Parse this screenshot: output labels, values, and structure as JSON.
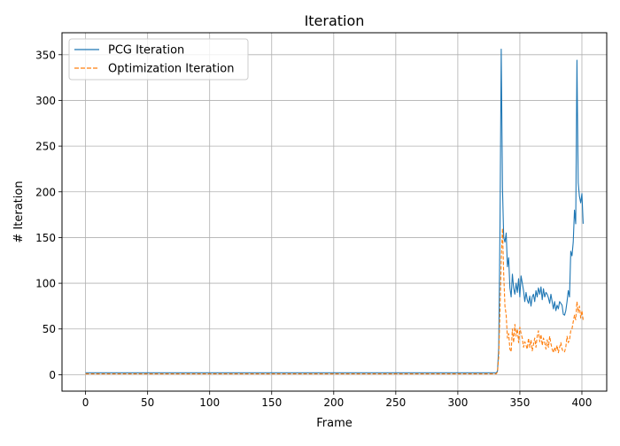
{
  "chart_data": {
    "type": "line",
    "title": "Iteration",
    "xlabel": "Frame",
    "ylabel": "# Iteration",
    "xlim": [
      -19,
      420
    ],
    "ylim": [
      -18,
      374
    ],
    "xticks": [
      0,
      50,
      100,
      150,
      200,
      250,
      300,
      350,
      400
    ],
    "yticks": [
      0,
      50,
      100,
      150,
      200,
      250,
      300,
      350
    ],
    "grid": true,
    "legend": "top-left",
    "series": [
      {
        "name": "PCG Iteration",
        "color": "#1f77b4",
        "style": "solid",
        "segments": [
          {
            "x_start": 0,
            "x_end": 330,
            "value": 2
          }
        ],
        "points": [
          [
            331,
            2
          ],
          [
            332,
            4
          ],
          [
            333,
            30
          ],
          [
            334,
            160
          ],
          [
            335,
            356
          ],
          [
            336,
            205
          ],
          [
            337,
            150
          ],
          [
            338,
            145
          ],
          [
            339,
            155
          ],
          [
            340,
            118
          ],
          [
            341,
            128
          ],
          [
            342,
            95
          ],
          [
            343,
            85
          ],
          [
            344,
            110
          ],
          [
            345,
            95
          ],
          [
            346,
            88
          ],
          [
            347,
            100
          ],
          [
            348,
            90
          ],
          [
            349,
            105
          ],
          [
            350,
            85
          ],
          [
            351,
            108
          ],
          [
            352,
            100
          ],
          [
            353,
            92
          ],
          [
            354,
            80
          ],
          [
            355,
            90
          ],
          [
            356,
            82
          ],
          [
            357,
            78
          ],
          [
            358,
            86
          ],
          [
            359,
            75
          ],
          [
            360,
            85
          ],
          [
            361,
            88
          ],
          [
            362,
            80
          ],
          [
            363,
            92
          ],
          [
            364,
            85
          ],
          [
            365,
            95
          ],
          [
            366,
            88
          ],
          [
            367,
            96
          ],
          [
            368,
            82
          ],
          [
            369,
            94
          ],
          [
            370,
            85
          ],
          [
            371,
            90
          ],
          [
            372,
            88
          ],
          [
            373,
            84
          ],
          [
            374,
            78
          ],
          [
            375,
            88
          ],
          [
            376,
            80
          ],
          [
            377,
            72
          ],
          [
            378,
            80
          ],
          [
            379,
            70
          ],
          [
            380,
            76
          ],
          [
            381,
            72
          ],
          [
            382,
            80
          ],
          [
            383,
            78
          ],
          [
            384,
            76
          ],
          [
            385,
            66
          ],
          [
            386,
            65
          ],
          [
            387,
            70
          ],
          [
            388,
            80
          ],
          [
            389,
            92
          ],
          [
            390,
            85
          ],
          [
            391,
            135
          ],
          [
            392,
            130
          ],
          [
            393,
            145
          ],
          [
            394,
            180
          ],
          [
            395,
            165
          ],
          [
            396,
            344
          ],
          [
            397,
            210
          ],
          [
            398,
            195
          ],
          [
            399,
            188
          ],
          [
            400,
            198
          ],
          [
            401,
            165
          ]
        ]
      },
      {
        "name": "Optimization Iteration",
        "color": "#ff7f0e",
        "style": "dashed",
        "segments": [
          {
            "x_start": 0,
            "x_end": 330,
            "value": 1
          }
        ],
        "points": [
          [
            331,
            1
          ],
          [
            332,
            3
          ],
          [
            333,
            20
          ],
          [
            334,
            70
          ],
          [
            335,
            125
          ],
          [
            336,
            160
          ],
          [
            337,
            110
          ],
          [
            338,
            75
          ],
          [
            339,
            65
          ],
          [
            340,
            40
          ],
          [
            341,
            45
          ],
          [
            342,
            28
          ],
          [
            343,
            25
          ],
          [
            344,
            50
          ],
          [
            345,
            35
          ],
          [
            346,
            55
          ],
          [
            347,
            42
          ],
          [
            348,
            50
          ],
          [
            349,
            35
          ],
          [
            350,
            52
          ],
          [
            351,
            45
          ],
          [
            352,
            40
          ],
          [
            353,
            30
          ],
          [
            354,
            36
          ],
          [
            355,
            32
          ],
          [
            356,
            28
          ],
          [
            357,
            40
          ],
          [
            358,
            30
          ],
          [
            359,
            38
          ],
          [
            360,
            26
          ],
          [
            361,
            33
          ],
          [
            362,
            40
          ],
          [
            363,
            30
          ],
          [
            364,
            42
          ],
          [
            365,
            48
          ],
          [
            366,
            36
          ],
          [
            367,
            44
          ],
          [
            368,
            32
          ],
          [
            369,
            40
          ],
          [
            370,
            35
          ],
          [
            371,
            28
          ],
          [
            372,
            38
          ],
          [
            373,
            30
          ],
          [
            374,
            42
          ],
          [
            375,
            34
          ],
          [
            376,
            28
          ],
          [
            377,
            24
          ],
          [
            378,
            30
          ],
          [
            379,
            26
          ],
          [
            380,
            32
          ],
          [
            381,
            24
          ],
          [
            382,
            30
          ],
          [
            383,
            35
          ],
          [
            384,
            28
          ],
          [
            385,
            25
          ],
          [
            386,
            25
          ],
          [
            387,
            30
          ],
          [
            388,
            42
          ],
          [
            389,
            35
          ],
          [
            390,
            38
          ],
          [
            391,
            48
          ],
          [
            392,
            50
          ],
          [
            393,
            58
          ],
          [
            394,
            65
          ],
          [
            395,
            60
          ],
          [
            396,
            80
          ],
          [
            397,
            68
          ],
          [
            398,
            75
          ],
          [
            399,
            62
          ],
          [
            400,
            70
          ],
          [
            401,
            60
          ]
        ]
      }
    ]
  }
}
